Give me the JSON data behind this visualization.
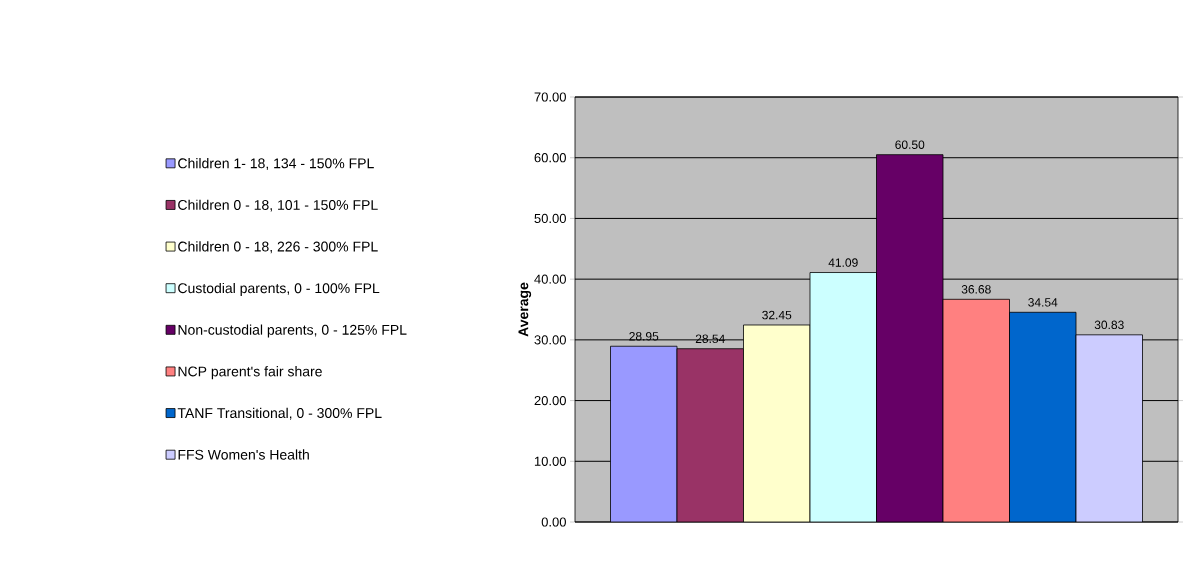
{
  "chart_data": {
    "type": "bar",
    "ylabel": "**Average**",
    "categories": [
      null
    ],
    "series": [
      {
        "name": "Children 1- 18, 134 - 150% FPL",
        "color": "#9999ff",
        "values": [
          28.95
        ],
        "value_labels": [
          "28.95"
        ]
      },
      {
        "name": "Children 0 - 18, 101 - 150% FPL",
        "color": "#993366",
        "values": [
          28.54
        ],
        "value_labels": [
          "28.54"
        ]
      },
      {
        "name": "Children 0 - 18, 226 - 300% FPL",
        "color": "#ffffcc",
        "values": [
          32.45
        ],
        "value_labels": [
          "32.45"
        ]
      },
      {
        "name": "Custodial parents, 0 - 100% FPL",
        "color": "#ccffff",
        "values": [
          41.09
        ],
        "value_labels": [
          "41.09"
        ]
      },
      {
        "name": "Non-custodial parents, 0 - 125% FPL",
        "color": "#660066",
        "values": [
          60.5
        ],
        "value_labels": [
          "60.50"
        ]
      },
      {
        "name": "NCP parent's fair share",
        "color": "#ff8080",
        "values": [
          36.68
        ],
        "value_labels": [
          "36.68"
        ]
      },
      {
        "name": "TANF Transitional,  0 - 300% FPL",
        "color": "#0066cc",
        "values": [
          34.54
        ],
        "value_labels": [
          "34.54"
        ]
      },
      {
        "name": "FFS Women's Health",
        "color": "#ccccff",
        "values": [
          30.83
        ],
        "value_labels": [
          "30.83"
        ]
      }
    ],
    "ylim": [
      0,
      70
    ],
    "yticks": [
      {
        "value": 0,
        "label": "0.00"
      },
      {
        "value": 10,
        "label": "10.00"
      },
      {
        "value": 20,
        "label": "20.00"
      },
      {
        "value": 30,
        "label": "30.00"
      },
      {
        "value": 40,
        "label": "40.00"
      },
      {
        "value": 50,
        "label": "50.00"
      },
      {
        "value": 60,
        "label": "60.00"
      },
      {
        "value": 70,
        "label": "70.00"
      }
    ],
    "grid": "y",
    "legend": "left"
  }
}
